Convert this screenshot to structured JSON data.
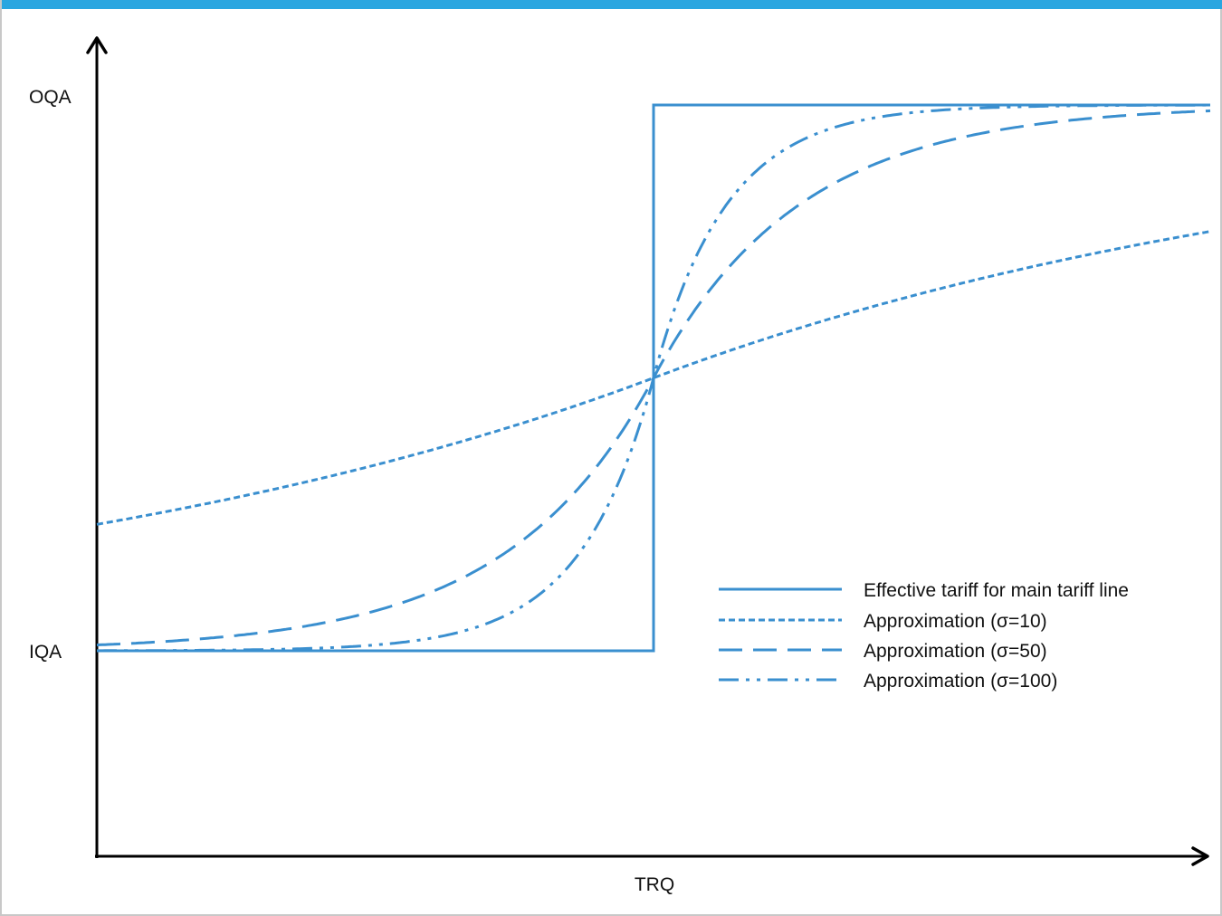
{
  "theme": {
    "accent_color": "#2aa6e0",
    "series_color": "#3a8fcf",
    "axis_color": "#000000"
  },
  "chart_data": {
    "type": "line",
    "title": "",
    "xlabel": "TRQ",
    "ylabel": "",
    "x_range": [
      0,
      1
    ],
    "y_range": [
      0,
      1
    ],
    "yticks": [
      {
        "label": "OQA",
        "value": 0.85
      },
      {
        "label": "IQA",
        "value": 0.25
      }
    ],
    "threshold_x": 0.5,
    "levels": {
      "low": 0.25,
      "high": 0.85
    },
    "legend_position": "right-center",
    "grid": false,
    "series": [
      {
        "name": "Effective tariff for main tariff line",
        "style": "solid",
        "kind": "step"
      },
      {
        "name": "Approximation (σ=10)",
        "style": "short-dash",
        "kind": "smooth",
        "sigma": 10
      },
      {
        "name": "Approximation (σ=50)",
        "style": "long-dash",
        "kind": "smooth",
        "sigma": 50
      },
      {
        "name": "Approximation (σ=100)",
        "style": "dash-dot-dot",
        "kind": "smooth",
        "sigma": 100
      }
    ]
  }
}
